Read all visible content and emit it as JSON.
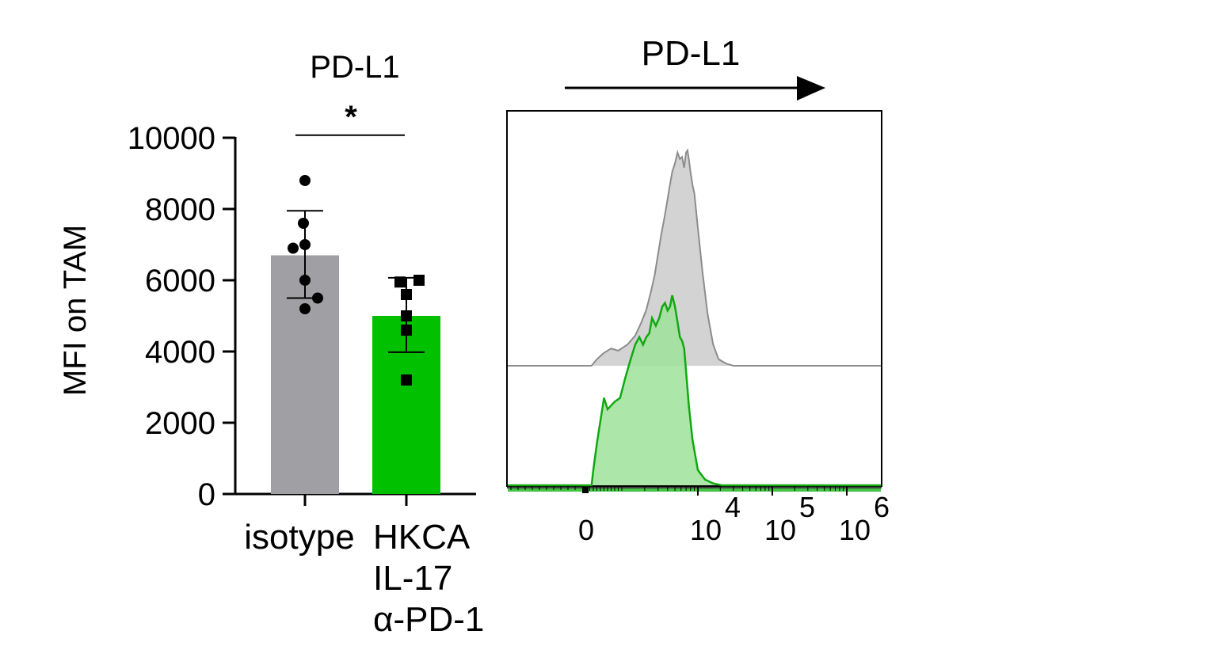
{
  "colors": {
    "isotype": "#a0a0a4",
    "treated": "#00c000",
    "grey_hist_fill": "#d3d3d3",
    "grey_hist_line": "#8c8c8c",
    "green_hist_fill": "#9ee29a",
    "green_hist_line": "#12a812",
    "axis": "#000000"
  },
  "chart_data": [
    {
      "type": "bar",
      "title": "PD-L1",
      "ylabel": "MFI on TAM",
      "xlabel": "",
      "ylim": [
        0,
        10000
      ],
      "yticks": [
        "0",
        "2000",
        "4000",
        "6000",
        "8000",
        "10000"
      ],
      "categories": [
        {
          "lines": [
            "isotype"
          ]
        },
        {
          "lines": [
            "HKCA",
            "IL-17",
            "α-PD-1"
          ]
        }
      ],
      "values": [
        6700,
        5000
      ],
      "error": [
        {
          "low": 5500,
          "high": 7950
        },
        {
          "low": 3980,
          "high": 6070
        }
      ],
      "points": [
        [
          8800,
          7600,
          7000,
          6900,
          6000,
          5500,
          5200
        ],
        [
          6000,
          5950,
          5600,
          5000,
          4600,
          3200
        ]
      ],
      "marker_shapes": [
        "circle",
        "square"
      ],
      "significance": {
        "label": "*",
        "between": [
          0,
          1
        ],
        "y": 10250
      },
      "grid": false
    },
    {
      "type": "area",
      "title": "PD-L1",
      "xscale": "biexponential",
      "xticks": [
        {
          "base": "0",
          "exp": "",
          "value": 0
        },
        {
          "base": "10",
          "exp": "4",
          "value": 10000
        },
        {
          "base": "10",
          "exp": "5",
          "value": 100000
        },
        {
          "base": "10",
          "exp": "6",
          "value": 1000000
        }
      ],
      "series": [
        {
          "color_key": "isotype",
          "x": [
            150,
            300,
            500,
            700,
            900,
            1200,
            1500,
            1800,
            2100,
            2400,
            2700,
            3000,
            3300,
            3600,
            3900,
            4200,
            4600,
            5000,
            5400,
            5800,
            6200,
            6600,
            7000,
            7300,
            7600,
            8000,
            8500,
            9000,
            10000,
            11500,
            13500,
            16000,
            19000,
            24000,
            30000
          ],
          "y": [
            0,
            0.03,
            0.06,
            0.08,
            0.07,
            0.1,
            0.14,
            0.2,
            0.26,
            0.34,
            0.42,
            0.52,
            0.61,
            0.68,
            0.75,
            0.82,
            0.9,
            0.94,
            0.99,
            0.96,
            0.97,
            0.92,
            0.99,
            1.0,
            0.96,
            0.9,
            0.84,
            0.8,
            0.64,
            0.44,
            0.24,
            0.1,
            0.03,
            0.01,
            0
          ]
        },
        {
          "color_key": "treated",
          "x": [
            150,
            200,
            300,
            400,
            500,
            600,
            700,
            800,
            950,
            1100,
            1300,
            1500,
            1700,
            1900,
            2100,
            2300,
            2500,
            2800,
            3100,
            3400,
            3700,
            4000,
            4300,
            4600,
            5000,
            5400,
            5800,
            6200,
            6600,
            7000,
            7600,
            8500,
            10000,
            12500,
            16000,
            21000
          ],
          "y": [
            0,
            0.08,
            0.22,
            0.34,
            0.46,
            0.4,
            0.42,
            0.44,
            0.46,
            0.56,
            0.66,
            0.74,
            0.78,
            0.74,
            0.78,
            0.8,
            0.88,
            0.84,
            0.88,
            0.94,
            0.96,
            0.92,
            0.94,
            1.0,
            0.94,
            0.86,
            0.78,
            0.76,
            0.72,
            0.6,
            0.42,
            0.24,
            0.08,
            0.03,
            0.01,
            0
          ]
        }
      ]
    }
  ]
}
